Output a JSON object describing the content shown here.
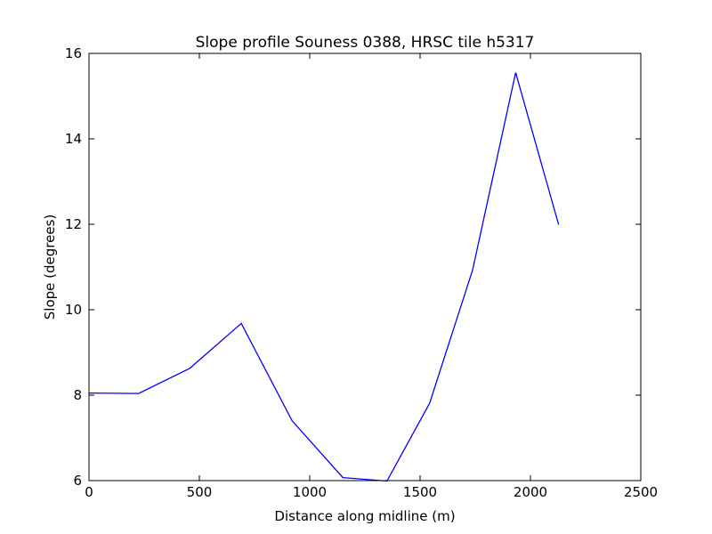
{
  "chart_data": {
    "type": "line",
    "title": "Slope profile Souness 0388, HRSC tile h5317",
    "xlabel": "Distance along midline (m)",
    "ylabel": "Slope (degrees)",
    "xlim": [
      0,
      2500
    ],
    "ylim": [
      6,
      16
    ],
    "xticks": [
      0,
      500,
      1000,
      1500,
      2000,
      2500
    ],
    "yticks": [
      6,
      8,
      10,
      12,
      14,
      16
    ],
    "grid": false,
    "line_color": "#0000ff",
    "series": [
      {
        "x": [
          0,
          225,
          457,
          690,
          920,
          1150,
          1350,
          1543,
          1738,
          1933,
          2128
        ],
        "y": [
          8.05,
          8.04,
          8.63,
          9.68,
          7.4,
          6.07,
          5.99,
          7.81,
          10.93,
          15.55,
          11.99
        ]
      }
    ]
  }
}
